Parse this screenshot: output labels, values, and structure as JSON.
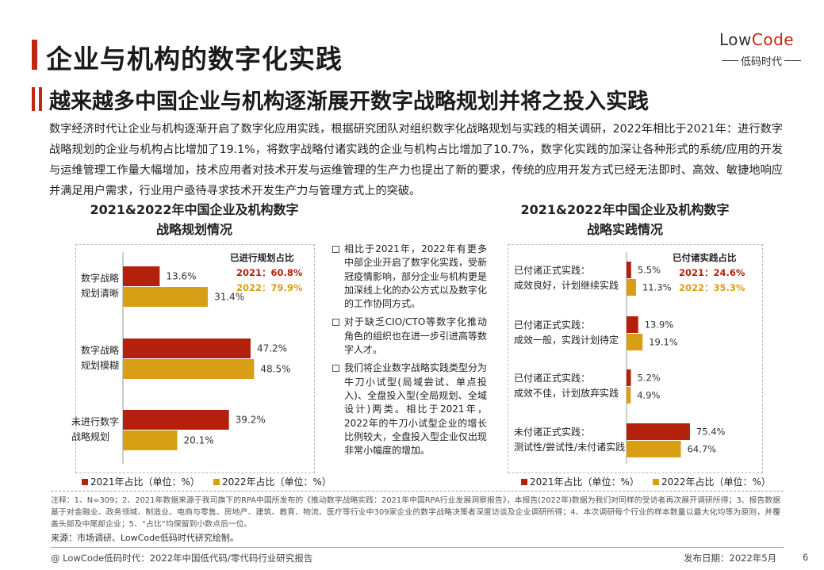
{
  "header": {
    "title": "企业与机构的数字化实践",
    "subtitle": "越来越多中国企业与机构逐渐展开数字战略规划并将之投入实践"
  },
  "logo": {
    "brand_a": "Low",
    "brand_b": "Code",
    "tagline": "低码时代"
  },
  "intro": "数字经济时代让企业与机构逐渐开启了数字化应用实践，根据研究团队对组织数字化战略规划与实践的相关调研，2022年相比于2021年：进行数字战略规划的企业与机构占比增加了19.1%，将数字战略付诸实践的企业与机构占比增加了10.7%，数字化实践的加深让各种形式的系统/应用的开发与运维管理工作量大幅增加，技术应用者对技术开发与运维管理的生产力也提出了新的要求，传统的应用开发方式已经无法即时、高效、敏捷地响应并满足用户需求，行业用户亟待寻求技术开发生产力与管理方式上的突破。",
  "chart_data": [
    {
      "type": "bar",
      "title": "2021&2022年中国企业及机构数字\n战略规划情况",
      "categories": [
        "数字战略\n规划清晰",
        "数字战略\n规划模糊",
        "未进行数字\n战略规划"
      ],
      "series": [
        {
          "name": "2021年占比（单位：%）",
          "color": "#b3200c",
          "values": [
            13.6,
            47.2,
            39.2
          ],
          "value_labels": [
            "13.6%",
            "47.2%",
            "39.2%"
          ]
        },
        {
          "name": "2022年占比（单位：%）",
          "color": "#d89f16",
          "values": [
            31.4,
            48.5,
            20.1
          ],
          "value_labels": [
            "31.4%",
            "48.5%",
            "20.1%"
          ]
        }
      ],
      "summary": {
        "title": "已进行规划占比",
        "items": [
          "2021：60.8%",
          "2022：79.9%"
        ]
      }
    },
    {
      "type": "bar",
      "title": "2021&2022年中国企业及机构数字\n战略实践情况",
      "categories": [
        "已付诸正式实践：\n成效良好，计划继续实践",
        "已付诸正式实践：\n成效一般，实践计划待定",
        "已付诸正式实践：\n成效不佳，计划放弃实践",
        "未付诸正式实践：\n测试性/尝试性/未付诸实践"
      ],
      "series": [
        {
          "name": "2021年占比（单位：%）",
          "color": "#b3200c",
          "values": [
            5.5,
            13.9,
            5.2,
            75.4
          ],
          "value_labels": [
            "5.5%",
            "13.9%",
            "5.2%",
            "75.4%"
          ]
        },
        {
          "name": "2022年占比（单位：%）",
          "color": "#d89f16",
          "values": [
            11.3,
            19.1,
            4.9,
            64.7
          ],
          "value_labels": [
            "11.3%",
            "19.1%",
            "4.9%",
            "64.7%"
          ]
        }
      ],
      "summary": {
        "title": "已付诸实践占比",
        "items": [
          "2021：24.6%",
          "2022：35.3%"
        ]
      }
    }
  ],
  "bullets": [
    "相比于2021年，2022年有更多中部企业开启了数字化实践，受新冠疫情影响，部分企业与机构更是加深线上化的办公方式以及数字化的工作协同方式。",
    "对于缺乏CIO/CTO等数字化推动角色的组织也在进一步引进高等数字人才。",
    "我们将企业数字战略实践类型分为牛刀小试型(局域尝试、单点投入)、全盘投入型(全局规划、全域设计)两类。相比于2021年，2022年的牛刀小试型企业的增长比例较大，全盘投入型企业仅出现非常小幅度的增加。"
  ],
  "notes": "注释：1、N=309；2、2021年数据来源于我司旗下的RPA中国所发布的《推动数字战略实践：2021年中国RPA行业发展洞察报告》，本报告(2022年)数据为我们对同样的受访者再次展开调研所得；3、报告数据基于对金融业、政务领域、制造业、电商与零售、房地产、建筑、教育、物流、医疗等行业中309家企业的数字战略决策者深度访谈及企业调研所得；4、本次调研每个行业的样本数量以最大化均等为原则，并覆盖头部及中尾部企业；5、“占比”均保留到小数点后一位。",
  "source": "来源：市场调研、LowCode低码时代研究绘制。",
  "footer": {
    "left": "@ LowCode低码时代：2022年中国低代码/零代码行业研究报告",
    "date": "发布日期：2022年5月",
    "page": "6"
  }
}
